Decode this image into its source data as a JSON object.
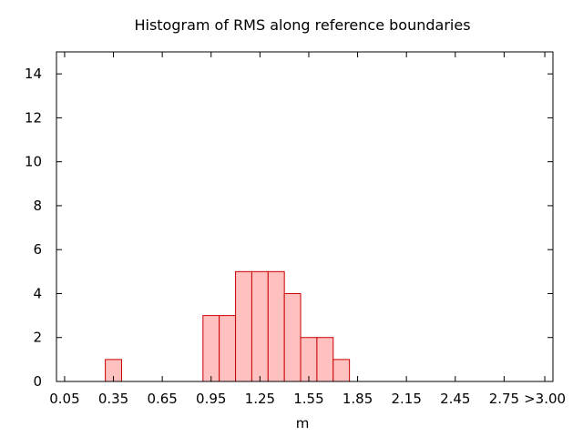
{
  "chart_data": {
    "type": "bar",
    "title": "Histogram of RMS along reference boundaries",
    "xlabel": "m",
    "ylabel": "",
    "ylim": [
      0,
      15
    ],
    "xlim": [
      0.0,
      3.05
    ],
    "yticks": [
      0,
      2,
      4,
      6,
      8,
      10,
      12,
      14
    ],
    "xticks": [
      {
        "value": 0.05,
        "label": "0.05"
      },
      {
        "value": 0.35,
        "label": "0.35"
      },
      {
        "value": 0.65,
        "label": "0.65"
      },
      {
        "value": 0.95,
        "label": "0.95"
      },
      {
        "value": 1.25,
        "label": "1.25"
      },
      {
        "value": 1.55,
        "label": "1.55"
      },
      {
        "value": 1.85,
        "label": "1.85"
      },
      {
        "value": 2.15,
        "label": "2.15"
      },
      {
        "value": 2.45,
        "label": "2.45"
      },
      {
        "value": 2.75,
        "label": "2.75"
      },
      {
        "value": 3.0,
        "label": ">3.00"
      }
    ],
    "bin_width": 0.1,
    "bins": [
      {
        "x": 0.35,
        "count": 1
      },
      {
        "x": 0.95,
        "count": 3
      },
      {
        "x": 1.05,
        "count": 3
      },
      {
        "x": 1.15,
        "count": 5
      },
      {
        "x": 1.25,
        "count": 5
      },
      {
        "x": 1.35,
        "count": 5
      },
      {
        "x": 1.45,
        "count": 4
      },
      {
        "x": 1.55,
        "count": 2
      },
      {
        "x": 1.65,
        "count": 2
      },
      {
        "x": 1.75,
        "count": 1
      }
    ],
    "colors": {
      "bar_fill": "#ffc0c0",
      "bar_stroke": "#cc0000",
      "axis": "#000000"
    },
    "grid": false,
    "legend": "none"
  }
}
